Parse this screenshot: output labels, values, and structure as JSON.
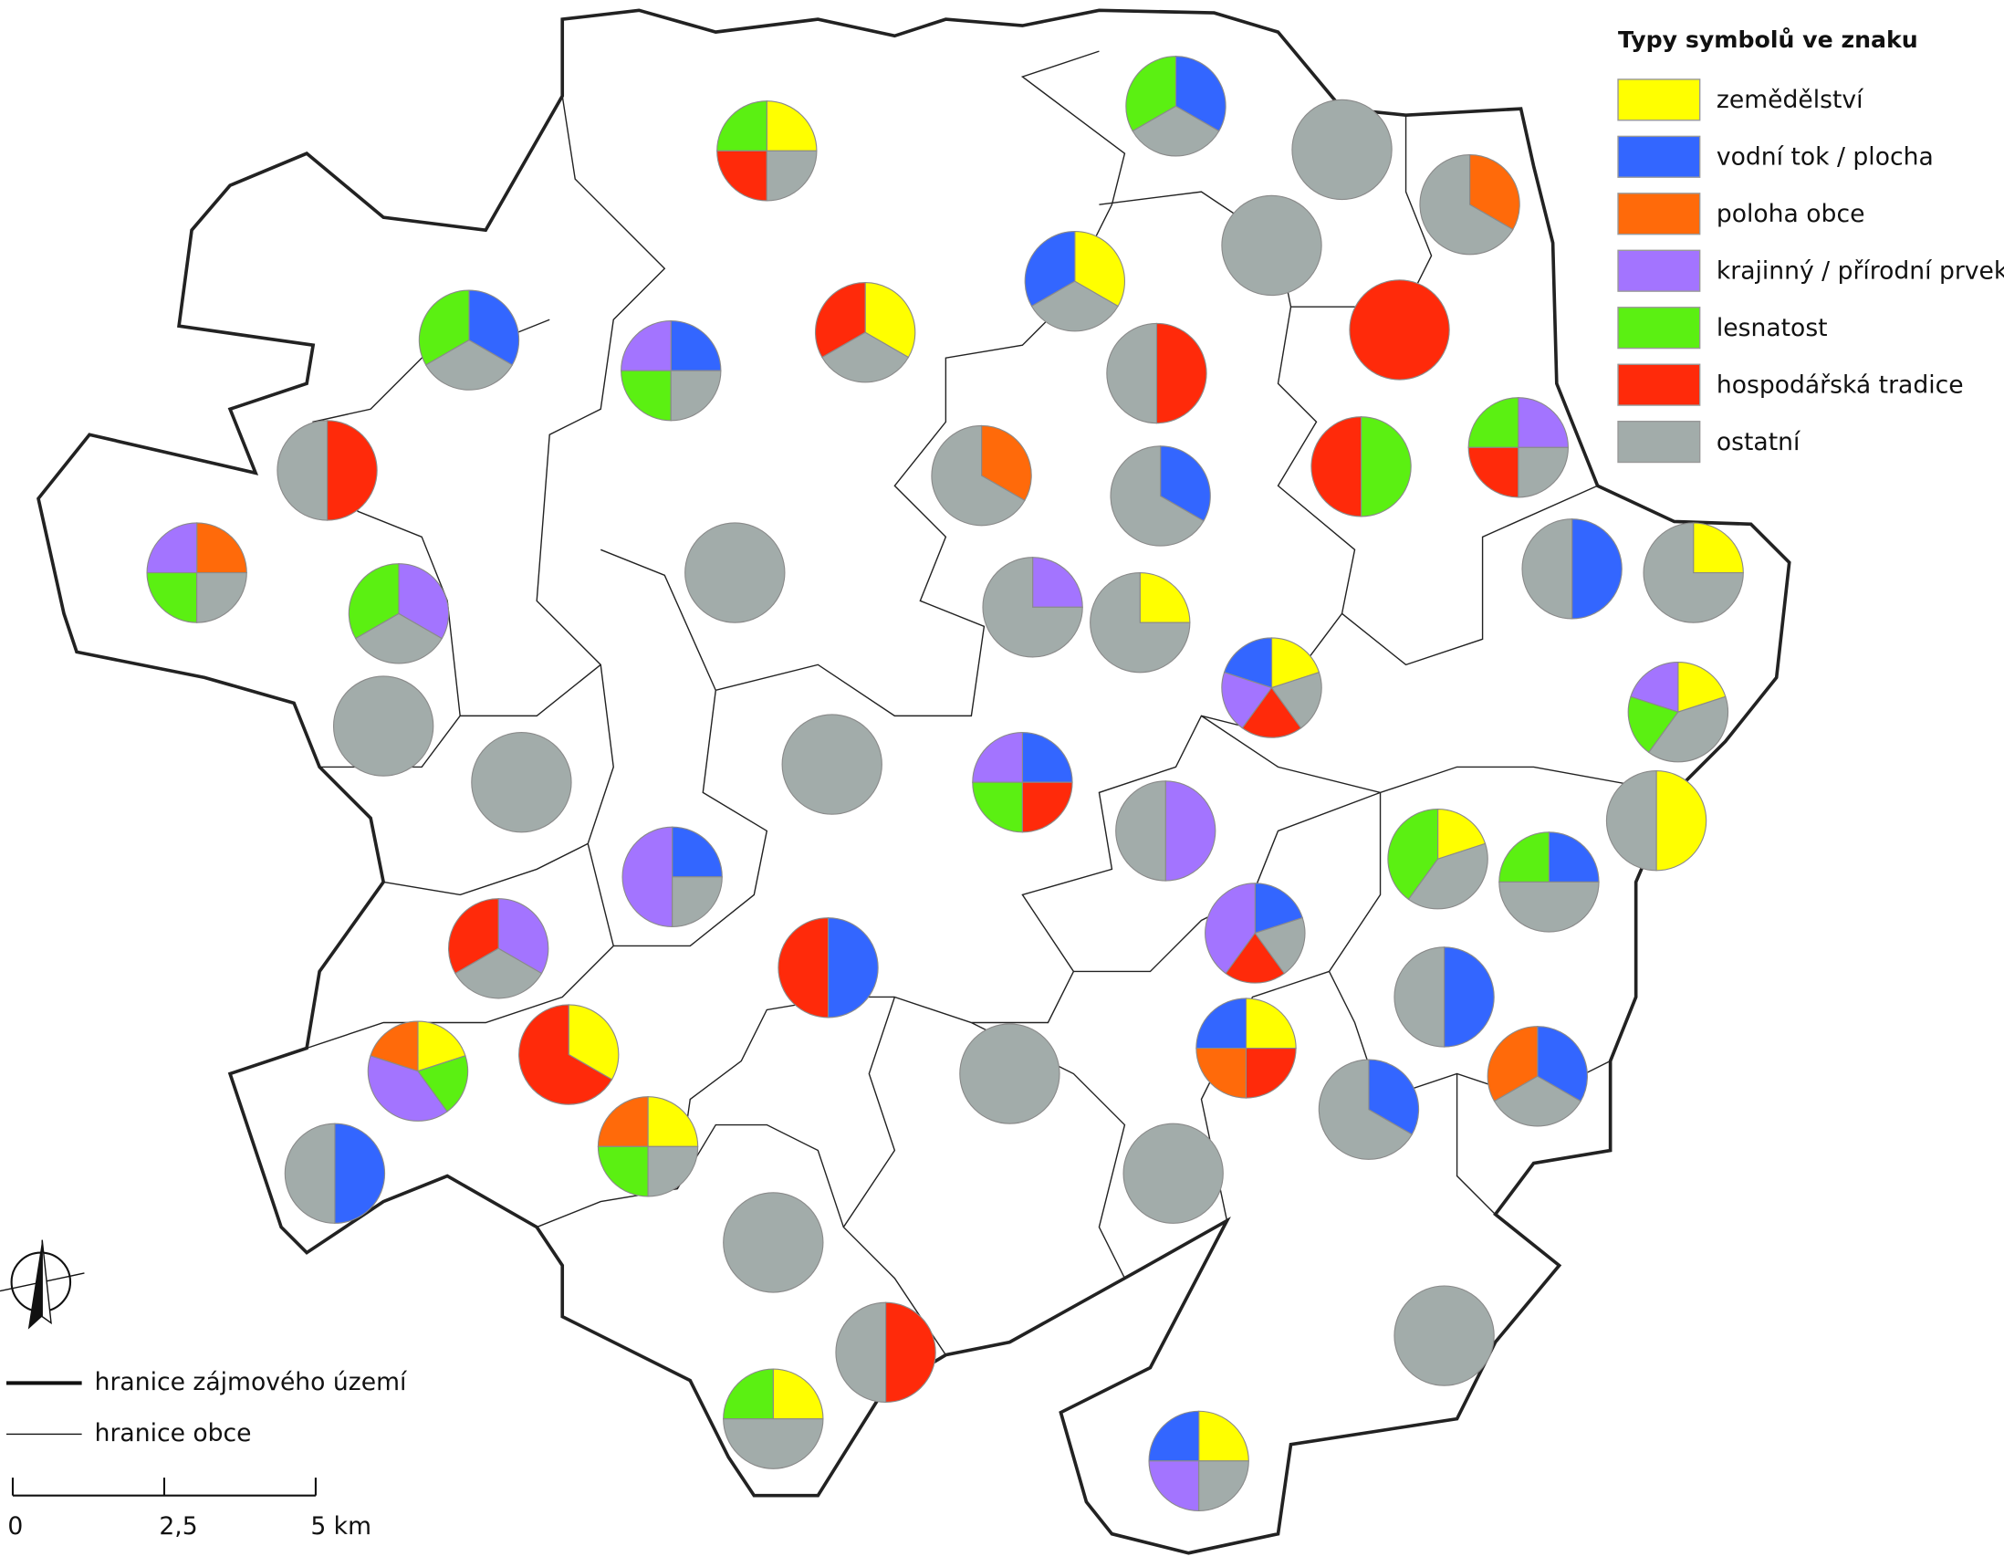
{
  "legend": {
    "title": "Typy symbolů ve znaku",
    "items": [
      {
        "label": "zemědělství",
        "color": "#ffff00"
      },
      {
        "label": "vodní tok / plocha",
        "color": "#3366ff"
      },
      {
        "label": "poloha obce",
        "color": "#ff6a0a"
      },
      {
        "label": "krajinný / přírodní prvek",
        "color": "#a374ff"
      },
      {
        "label": "lesnatost",
        "color": "#5bf012"
      },
      {
        "label": "hospodářská tradice",
        "color": "#ff2a0a"
      },
      {
        "label": "ostatní",
        "color": "#a2acaa"
      }
    ]
  },
  "line_legend": [
    "hranice zájmového území",
    "hranice obce"
  ],
  "scale_bar": {
    "ticks": [
      0,
      {
        "value": 2.5,
        "label": "2,5"
      },
      {
        "value": 5,
        "label": "5 km"
      }
    ]
  },
  "municipalities": [
    {
      "values": [
        1,
        0,
        0,
        0,
        1,
        1,
        1
      ]
    },
    {
      "values": [
        0,
        1,
        0,
        0,
        1,
        0,
        1
      ]
    },
    {
      "values": [
        0,
        0,
        0,
        0,
        0,
        0,
        1
      ]
    },
    {
      "values": [
        0,
        0,
        1,
        0,
        0,
        0,
        2
      ]
    },
    {
      "values": [
        0,
        0,
        0,
        0,
        0,
        0,
        1
      ]
    },
    {
      "values": [
        1,
        1,
        0,
        0,
        0,
        0,
        1
      ]
    },
    {
      "values": [
        0,
        1,
        0,
        0,
        1,
        0,
        1
      ]
    },
    {
      "values": [
        0,
        1,
        0,
        1,
        1,
        0,
        1
      ]
    },
    {
      "values": [
        1,
        0,
        0,
        0,
        0,
        1,
        1
      ]
    },
    {
      "values": [
        0,
        0,
        0,
        0,
        0,
        1,
        1
      ]
    },
    {
      "values": [
        0,
        0,
        0,
        0,
        0,
        1,
        0
      ]
    },
    {
      "values": [
        0,
        0,
        0,
        0,
        0,
        1,
        1
      ]
    },
    {
      "values": [
        0,
        0,
        0,
        0,
        1,
        1,
        0
      ]
    },
    {
      "values": [
        0,
        0,
        0,
        1,
        1,
        1,
        1
      ]
    },
    {
      "values": [
        0,
        0,
        1,
        0,
        0,
        0,
        2
      ]
    },
    {
      "values": [
        0,
        1,
        0,
        0,
        0,
        0,
        2
      ]
    },
    {
      "values": [
        0,
        0,
        0,
        0,
        0,
        0,
        1
      ]
    },
    {
      "values": [
        0,
        0,
        1,
        1,
        1,
        0,
        1
      ]
    },
    {
      "values": [
        0,
        0,
        0,
        1,
        1,
        0,
        1
      ]
    },
    {
      "values": [
        0,
        0,
        0,
        1,
        0,
        0,
        3
      ]
    },
    {
      "values": [
        1,
        0,
        0,
        0,
        0,
        0,
        3
      ]
    },
    {
      "values": [
        0,
        1,
        0,
        0,
        0,
        0,
        1
      ]
    },
    {
      "values": [
        1,
        0,
        0,
        0,
        0,
        0,
        3
      ]
    },
    {
      "values": [
        1,
        1,
        0,
        1,
        0,
        1,
        1
      ]
    },
    {
      "values": [
        1,
        0,
        0,
        1,
        1,
        0,
        2
      ]
    },
    {
      "values": [
        0,
        0,
        0,
        0,
        0,
        0,
        1
      ]
    },
    {
      "values": [
        0,
        0,
        0,
        0,
        0,
        0,
        1
      ]
    },
    {
      "values": [
        0,
        0,
        0,
        0,
        0,
        0,
        1
      ]
    },
    {
      "values": [
        0,
        1,
        0,
        1,
        1,
        1,
        0
      ]
    },
    {
      "values": [
        0,
        0,
        0,
        1,
        0,
        0,
        1
      ]
    },
    {
      "values": [
        1,
        0,
        0,
        0,
        0,
        0,
        1
      ]
    },
    {
      "values": [
        0,
        1,
        0,
        2,
        0,
        0,
        1
      ]
    },
    {
      "values": [
        1,
        0,
        0,
        0,
        2,
        0,
        2
      ]
    },
    {
      "values": [
        0,
        1,
        0,
        0,
        1,
        0,
        2
      ]
    },
    {
      "values": [
        0,
        0,
        0,
        1,
        0,
        1,
        1
      ]
    },
    {
      "values": [
        0,
        1,
        0,
        0,
        0,
        1,
        0
      ]
    },
    {
      "values": [
        0,
        1,
        0,
        2,
        0,
        1,
        1
      ]
    },
    {
      "values": [
        0,
        1,
        0,
        0,
        0,
        0,
        1
      ]
    },
    {
      "values": [
        1,
        0,
        0,
        0,
        0,
        2,
        0
      ]
    },
    {
      "values": [
        1,
        0,
        1,
        2,
        1,
        0,
        0
      ]
    },
    {
      "values": [
        1,
        1,
        1,
        0,
        0,
        1,
        0
      ]
    },
    {
      "values": [
        0,
        0,
        0,
        0,
        0,
        0,
        1
      ]
    },
    {
      "values": [
        0,
        1,
        0,
        0,
        0,
        0,
        2
      ]
    },
    {
      "values": [
        0,
        1,
        1,
        0,
        0,
        0,
        1
      ]
    },
    {
      "values": [
        1,
        0,
        1,
        0,
        1,
        0,
        1
      ]
    },
    {
      "values": [
        0,
        1,
        0,
        0,
        0,
        0,
        1
      ]
    },
    {
      "values": [
        0,
        0,
        0,
        0,
        0,
        0,
        1
      ]
    },
    {
      "values": [
        0,
        0,
        0,
        0,
        0,
        0,
        1
      ]
    },
    {
      "values": [
        0,
        0,
        0,
        0,
        0,
        1,
        1
      ]
    },
    {
      "values": [
        0,
        0,
        0,
        0,
        0,
        0,
        1
      ]
    },
    {
      "values": [
        1,
        0,
        0,
        0,
        1,
        0,
        2
      ]
    },
    {
      "values": [
        1,
        1,
        0,
        1,
        0,
        0,
        1
      ]
    }
  ]
}
